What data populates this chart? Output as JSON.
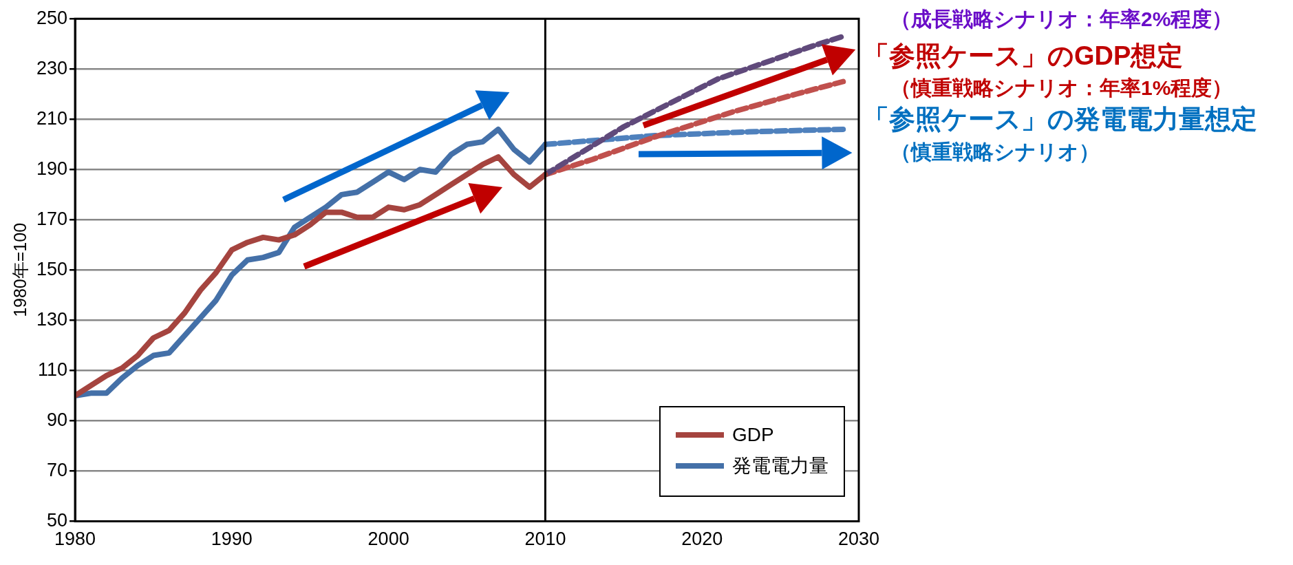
{
  "chart_data": {
    "type": "line",
    "ylabel": "1980年=100",
    "x": [
      1980,
      1981,
      1982,
      1983,
      1984,
      1985,
      1986,
      1987,
      1988,
      1989,
      1990,
      1991,
      1992,
      1993,
      1994,
      1995,
      1996,
      1997,
      1998,
      1999,
      2000,
      2001,
      2002,
      2003,
      2004,
      2005,
      2006,
      2007,
      2008,
      2009,
      2010
    ],
    "series": [
      {
        "name": "GDP",
        "color": "#a5443f",
        "values": [
          100,
          104,
          108,
          111,
          116,
          123,
          126,
          133,
          142,
          149,
          158,
          161,
          163,
          162,
          164,
          168,
          173,
          173,
          171,
          171,
          175,
          174,
          176,
          180,
          184,
          188,
          192,
          195,
          188,
          183,
          188
        ]
      },
      {
        "name": "発電電力量",
        "color": "#4470a8",
        "values": [
          100,
          101,
          101,
          107,
          112,
          116,
          117,
          124,
          131,
          138,
          148,
          154,
          155,
          157,
          167,
          171,
          175,
          180,
          181,
          185,
          189,
          186,
          190,
          189,
          196,
          200,
          201,
          206,
          198,
          193,
          200
        ]
      },
      {
        "color": "#604a7b",
        "line_style": "dashed",
        "x": [
          2010,
          2015,
          2021,
          2027,
          2029
        ],
        "values": [
          188,
          207,
          226,
          239,
          243
        ]
      },
      {
        "color": "#c0504d",
        "line_style": "dashed",
        "x": [
          2010,
          2013,
          2017,
          2022,
          2026,
          2029
        ],
        "values": [
          188,
          194,
          203,
          213,
          220,
          225
        ]
      },
      {
        "color": "#4f81bd",
        "line_style": "dashed",
        "x": [
          2010,
          2017,
          2023,
          2029
        ],
        "values": [
          200,
          203.5,
          205,
          206
        ]
      }
    ],
    "xlim": [
      1980,
      2030
    ],
    "xticks": [
      1980,
      1990,
      2000,
      2010,
      2020,
      2030
    ],
    "ylim": [
      50,
      250
    ],
    "yticks": [
      50,
      70,
      90,
      110,
      130,
      150,
      170,
      190,
      210,
      230,
      250
    ],
    "grid": "y",
    "legend": "bottom right",
    "marker": "none",
    "line_style": "solid",
    "ref_lines": [
      {
        "axis": "x",
        "value": 2010,
        "color": "#000000"
      }
    ],
    "annotations": [
      "（成長戦略シナリオ：年率2%程度）",
      "「参照ケース」のGDP想定",
      "（慎重戦略シナリオ：年率1%程度）",
      "「参照ケース」の発電電力量想定",
      "（慎重戦略シナリオ）"
    ]
  }
}
